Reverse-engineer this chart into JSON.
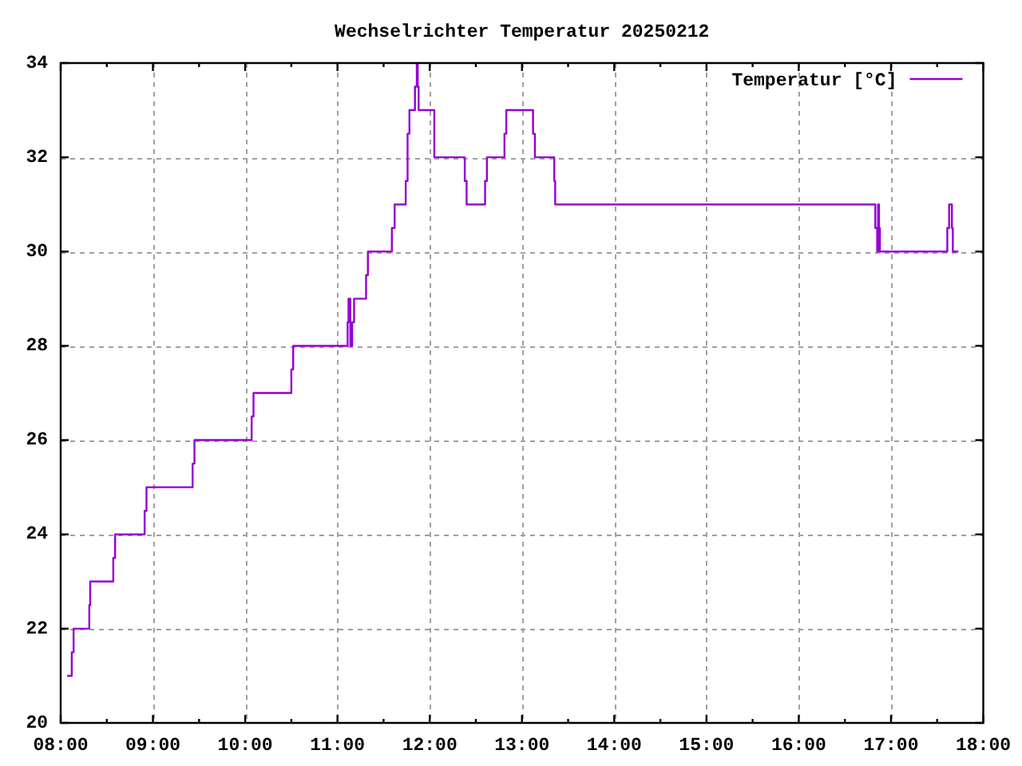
{
  "chart_data": {
    "type": "step",
    "title": "Wechselrichter Temperatur 20250212",
    "x": [
      8.07,
      8.12,
      8.14,
      8.31,
      8.32,
      8.57,
      8.59,
      8.91,
      8.93,
      9.43,
      9.45,
      10.07,
      10.09,
      10.5,
      10.52,
      11.11,
      11.12,
      11.14,
      11.16,
      11.18,
      11.31,
      11.33,
      11.59,
      11.62,
      11.74,
      11.76,
      11.78,
      11.84,
      11.86,
      11.87,
      11.88,
      12.05,
      12.38,
      12.4,
      12.6,
      12.62,
      12.81,
      12.83,
      13.12,
      13.14,
      13.35,
      13.36,
      16.83,
      16.85,
      16.86,
      16.87,
      16.88,
      17.61,
      17.63,
      17.66,
      17.67,
      17.73
    ],
    "series": [
      {
        "name": "Temperatur [°C]",
        "color": "#9400d3",
        "values": [
          21,
          21.5,
          22,
          22.5,
          23,
          23.5,
          24,
          24.5,
          25,
          25.5,
          26,
          26.5,
          27,
          27.5,
          28,
          28.5,
          29,
          28,
          28.5,
          29,
          29.5,
          30,
          30.5,
          31,
          31.5,
          32.5,
          33,
          33.5,
          34,
          33.5,
          33,
          32,
          31.5,
          31,
          31.5,
          32,
          32.5,
          33,
          32.5,
          32,
          31.5,
          31,
          30.5,
          30,
          31,
          30.5,
          30,
          30.5,
          31,
          30.5,
          30,
          30
        ]
      }
    ],
    "xlim": [
      8,
      18
    ],
    "xticks": [
      {
        "value": 8,
        "label": "08:00"
      },
      {
        "value": 8.5,
        "label": null
      },
      {
        "value": 9,
        "label": "09:00"
      },
      {
        "value": 9.5,
        "label": null
      },
      {
        "value": 10,
        "label": "10:00"
      },
      {
        "value": 10.5,
        "label": null
      },
      {
        "value": 11,
        "label": "11:00"
      },
      {
        "value": 11.5,
        "label": null
      },
      {
        "value": 12,
        "label": "12:00"
      },
      {
        "value": 12.5,
        "label": null
      },
      {
        "value": 13,
        "label": "13:00"
      },
      {
        "value": 13.5,
        "label": null
      },
      {
        "value": 14,
        "label": "14:00"
      },
      {
        "value": 14.5,
        "label": null
      },
      {
        "value": 15,
        "label": "15:00"
      },
      {
        "value": 15.5,
        "label": null
      },
      {
        "value": 16,
        "label": "16:00"
      },
      {
        "value": 16.5,
        "label": null
      },
      {
        "value": 17,
        "label": "17:00"
      },
      {
        "value": 17.5,
        "label": null
      },
      {
        "value": 18,
        "label": "18:00"
      }
    ],
    "ylim": [
      20,
      34
    ],
    "yticks": [
      20,
      22,
      24,
      26,
      28,
      30,
      32,
      34
    ],
    "grid": true,
    "legend": "top right"
  }
}
